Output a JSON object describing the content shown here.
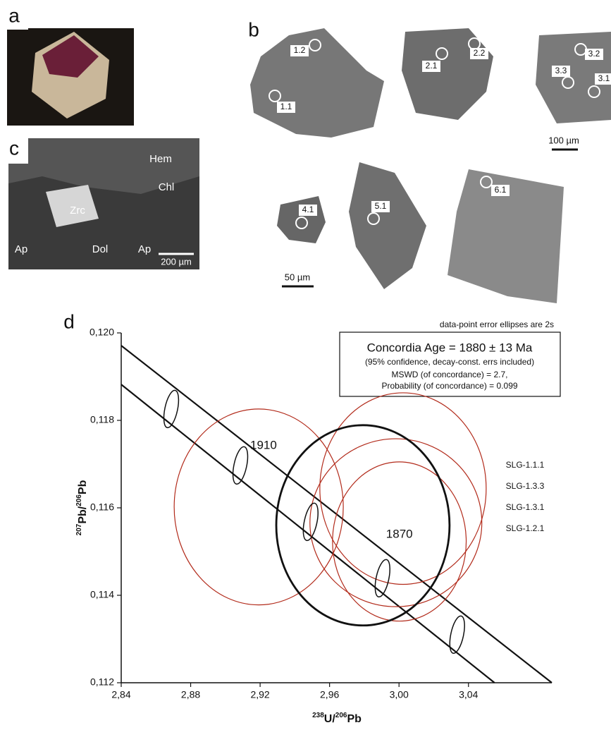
{
  "panels": {
    "a": {
      "label": "a"
    },
    "b": {
      "label": "b",
      "spots": [
        "1.2",
        "1.1",
        "2.1",
        "2.2",
        "3.2",
        "3.3",
        "3.1",
        "4.1",
        "5.1",
        "6.1"
      ],
      "scale_top": "100 µm",
      "scale_bottom": "50 µm"
    },
    "c": {
      "label": "c",
      "minerals": [
        "Hem",
        "Chl",
        "Zrc",
        "Ap",
        "Dol",
        "Ap"
      ],
      "scale": "200 µm"
    }
  },
  "chart_data": {
    "type": "concordia",
    "panel_label": "d",
    "note": "data-point error ellipses are 2s",
    "box": [
      "Concordia Age = 1880 ± 13 Ma",
      "(95% confidence, decay-const. errs included)",
      "MSWD (of concordance) = 2.7,",
      "Probability (of concordance) = 0.099"
    ],
    "xlabel": [
      "238",
      "U/",
      "206",
      "Pb"
    ],
    "ylabel": [
      "207",
      "Pb/",
      "206",
      "Pb"
    ],
    "xlim": [
      2.84,
      3.088
    ],
    "ylim": [
      0.112,
      0.12
    ],
    "xticks": [
      {
        "value": 2.84,
        "label": "2,84"
      },
      {
        "value": 2.88,
        "label": "2,88"
      },
      {
        "value": 2.92,
        "label": "2,92"
      },
      {
        "value": 2.96,
        "label": "2,96"
      },
      {
        "value": 3.0,
        "label": "3,00"
      },
      {
        "value": 3.04,
        "label": "3,04"
      }
    ],
    "yticks": [
      {
        "value": 0.112,
        "label": "0,112"
      },
      {
        "value": 0.114,
        "label": "0,114"
      },
      {
        "value": 0.116,
        "label": "0,116"
      },
      {
        "value": 0.118,
        "label": "0,118"
      },
      {
        "value": 0.12,
        "label": "0,120"
      }
    ],
    "concordia_lines": [
      {
        "x": [
          2.84,
          3.088
        ],
        "y": [
          0.11971,
          0.112
        ]
      },
      {
        "x": [
          2.84,
          3.055
        ],
        "y": [
          0.11882,
          0.112
        ]
      }
    ],
    "age_markers": {
      "x": [
        2.8688,
        2.9086,
        2.9491,
        2.9905,
        3.0335
      ],
      "y": [
        0.11826,
        0.11697,
        0.11568,
        0.11439,
        0.1131
      ],
      "labels": [
        null,
        "1910",
        null,
        "1870",
        null
      ]
    },
    "ellipses": [
      {
        "color": "#b22a1a",
        "x": 2.9192,
        "y": 0.11602,
        "sx": 0.0487,
        "sy": 0.00224
      },
      {
        "color": "#b22a1a",
        "x": 3.0023,
        "y": 0.11644,
        "sx": 0.0479,
        "sy": 0.00219
      },
      {
        "color": "#b22a1a",
        "x": 2.9982,
        "y": 0.11566,
        "sx": 0.0495,
        "sy": 0.00192
      },
      {
        "color": "#b22a1a",
        "x": 3.0002,
        "y": 0.11523,
        "sx": 0.0385,
        "sy": 0.00182
      }
    ],
    "mean_ellipse": {
      "color": "#111111",
      "x": 2.9792,
      "y": 0.1156,
      "sx": 0.0499,
      "sy": 0.00229
    },
    "sample_labels": [
      "SLG-1.1.1",
      "SLG-1.3.3",
      "SLG-1.3.1",
      "SLG-1.2.1"
    ]
  }
}
